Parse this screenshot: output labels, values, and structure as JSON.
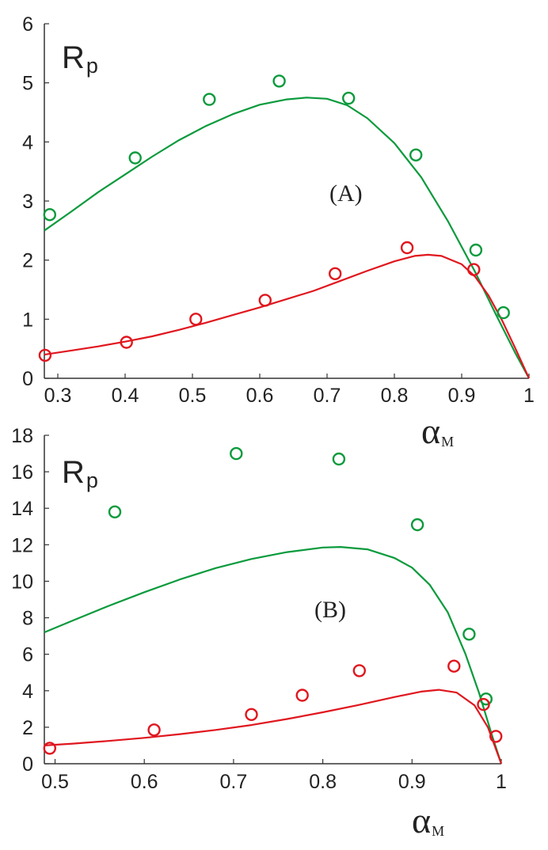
{
  "chart_data": [
    {
      "type": "line",
      "panel": "A",
      "annotation": "(A)",
      "ylabel_main": "R",
      "ylabel_sub": "p",
      "xlabel_main": "α",
      "xlabel_sub": "M",
      "xlim": [
        0.28,
        1.0
      ],
      "ylim": [
        0,
        6
      ],
      "xticks": [
        "0.3",
        "0.4",
        "0.5",
        "0.6",
        "0.7",
        "0.8",
        "0.9",
        "1"
      ],
      "xtick_values": [
        0.3,
        0.4,
        0.5,
        0.6,
        0.7,
        0.8,
        0.9,
        1.0
      ],
      "yticks": [
        "0",
        "1",
        "2",
        "3",
        "4",
        "5",
        "6"
      ],
      "ytick_values": [
        0,
        1,
        2,
        3,
        4,
        5,
        6
      ],
      "series": [
        {
          "name": "green curve",
          "color": "#0a9a3c",
          "kind": "line",
          "x": [
            0.28,
            0.32,
            0.36,
            0.4,
            0.44,
            0.48,
            0.52,
            0.56,
            0.6,
            0.64,
            0.67,
            0.7,
            0.73,
            0.76,
            0.8,
            0.84,
            0.88,
            0.92,
            0.95,
            0.98,
            1.0
          ],
          "y": [
            2.5,
            2.82,
            3.15,
            3.45,
            3.75,
            4.03,
            4.27,
            4.47,
            4.63,
            4.72,
            4.75,
            4.73,
            4.62,
            4.4,
            3.98,
            3.4,
            2.65,
            1.8,
            1.1,
            0.42,
            0.0
          ]
        },
        {
          "name": "red curve",
          "color": "#e0161e",
          "kind": "line",
          "x": [
            0.28,
            0.32,
            0.36,
            0.4,
            0.44,
            0.48,
            0.52,
            0.56,
            0.6,
            0.64,
            0.68,
            0.72,
            0.76,
            0.8,
            0.83,
            0.85,
            0.87,
            0.9,
            0.92,
            0.94,
            0.96,
            0.98,
            1.0
          ],
          "y": [
            0.4,
            0.47,
            0.54,
            0.62,
            0.71,
            0.82,
            0.94,
            1.07,
            1.2,
            1.34,
            1.48,
            1.65,
            1.82,
            1.98,
            2.07,
            2.09,
            2.07,
            1.93,
            1.72,
            1.4,
            0.98,
            0.5,
            0.0
          ]
        },
        {
          "name": "green circles",
          "color": "#0a9a3c",
          "kind": "scatter",
          "x": [
            0.288,
            0.415,
            0.525,
            0.629,
            0.732,
            0.832,
            0.921,
            0.962
          ],
          "y": [
            2.77,
            3.73,
            4.72,
            5.03,
            4.74,
            3.78,
            2.17,
            1.11
          ]
        },
        {
          "name": "red circles",
          "color": "#e0161e",
          "kind": "scatter",
          "x": [
            0.281,
            0.402,
            0.505,
            0.608,
            0.712,
            0.819,
            0.918
          ],
          "y": [
            0.39,
            0.61,
            1.0,
            1.32,
            1.77,
            2.21,
            1.84
          ]
        }
      ]
    },
    {
      "type": "line",
      "panel": "B",
      "annotation": "(B)",
      "ylabel_main": "R",
      "ylabel_sub": "p",
      "xlabel_main": "α",
      "xlabel_sub": "M",
      "xlim": [
        0.488,
        1.0
      ],
      "ylim": [
        0,
        18
      ],
      "xticks": [
        "0.5",
        "0.6",
        "0.7",
        "0.8",
        "0.9",
        "1"
      ],
      "xtick_values": [
        0.5,
        0.6,
        0.7,
        0.8,
        0.9,
        1.0
      ],
      "yticks": [
        "0",
        "2",
        "4",
        "6",
        "8",
        "10",
        "12",
        "14",
        "16",
        "18"
      ],
      "ytick_values": [
        0,
        2,
        4,
        6,
        8,
        10,
        12,
        14,
        16,
        18
      ],
      "series": [
        {
          "name": "green curve",
          "color": "#0a9a3c",
          "kind": "line",
          "x": [
            0.488,
            0.52,
            0.56,
            0.6,
            0.64,
            0.68,
            0.72,
            0.76,
            0.8,
            0.82,
            0.85,
            0.88,
            0.9,
            0.92,
            0.94,
            0.96,
            0.975,
            0.99,
            1.0
          ],
          "y": [
            7.2,
            7.85,
            8.65,
            9.4,
            10.1,
            10.72,
            11.22,
            11.6,
            11.85,
            11.88,
            11.75,
            11.28,
            10.75,
            9.8,
            8.3,
            6.0,
            3.9,
            1.5,
            0.0
          ]
        },
        {
          "name": "red curve",
          "color": "#e0161e",
          "kind": "line",
          "x": [
            0.488,
            0.52,
            0.56,
            0.6,
            0.64,
            0.68,
            0.72,
            0.76,
            0.8,
            0.84,
            0.88,
            0.91,
            0.93,
            0.95,
            0.97,
            0.985,
            1.0
          ],
          "y": [
            1.0,
            1.1,
            1.25,
            1.42,
            1.62,
            1.85,
            2.12,
            2.45,
            2.82,
            3.22,
            3.65,
            3.95,
            4.05,
            3.9,
            3.2,
            2.0,
            0.0
          ]
        },
        {
          "name": "green circles",
          "color": "#0a9a3c",
          "kind": "scatter",
          "x": [
            0.567,
            0.703,
            0.818,
            0.906,
            0.964,
            0.983
          ],
          "y": [
            13.8,
            17.0,
            16.7,
            13.1,
            7.1,
            3.55
          ]
        },
        {
          "name": "red circles",
          "color": "#e0161e",
          "kind": "scatter",
          "x": [
            0.494,
            0.611,
            0.72,
            0.777,
            0.841,
            0.947,
            0.98,
            0.994
          ],
          "y": [
            0.85,
            1.85,
            2.7,
            3.75,
            5.1,
            5.35,
            3.25,
            1.5
          ]
        }
      ]
    }
  ]
}
